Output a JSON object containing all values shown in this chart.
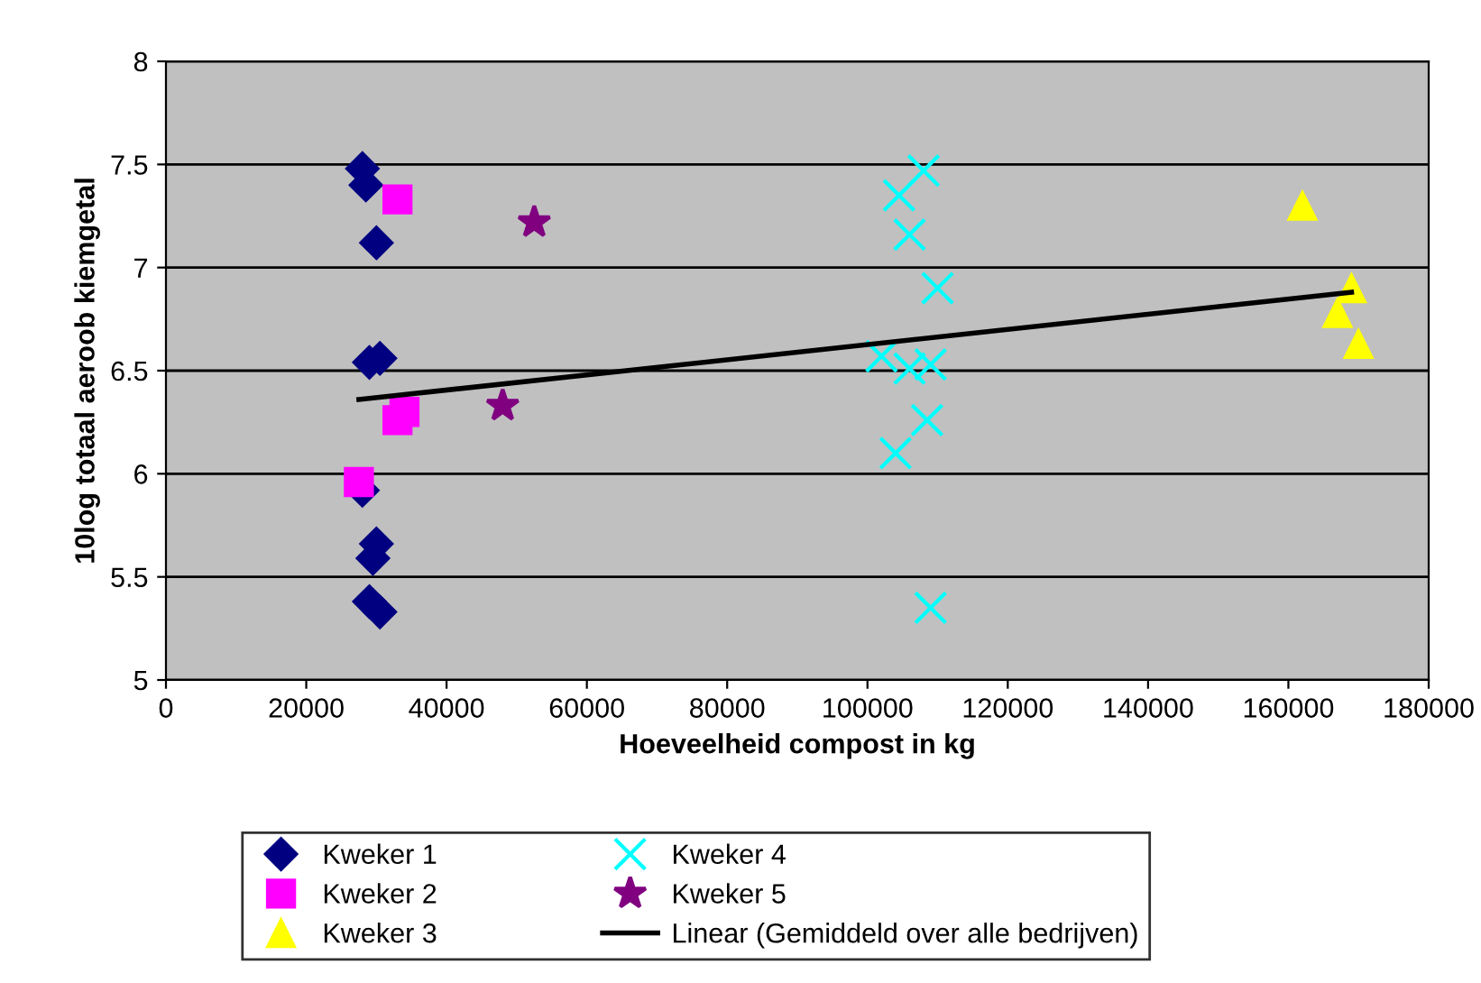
{
  "chart_data": {
    "type": "scatter",
    "xlabel": "Hoeveelheid compost in kg",
    "ylabel": "10log totaal aeroob kiemgetal",
    "xlim": [
      0,
      180000
    ],
    "xticks": [
      0,
      20000,
      40000,
      60000,
      80000,
      100000,
      120000,
      140000,
      160000,
      180000
    ],
    "ylim": [
      5,
      8
    ],
    "yticks": [
      5,
      5.5,
      6,
      6.5,
      7,
      7.5,
      8
    ],
    "grid": "y",
    "legend": "bottom",
    "series": [
      {
        "name": "Kweker 1",
        "color": "#000080",
        "marker": "diamond",
        "x": [
          28000,
          28500,
          30000,
          29000,
          30500,
          28000,
          30000,
          29500,
          29000,
          30500
        ],
        "values": [
          7.48,
          7.4,
          7.12,
          6.54,
          6.56,
          5.92,
          5.66,
          5.59,
          5.38,
          5.33
        ]
      },
      {
        "name": "Kweker 2",
        "color": "#ff00ff",
        "marker": "square",
        "x": [
          33000,
          33000,
          34000,
          27500
        ],
        "values": [
          7.33,
          6.26,
          6.3,
          5.96
        ]
      },
      {
        "name": "Kweker 3",
        "color": "#ffff00",
        "marker": "triangle",
        "x": [
          162000,
          169000,
          167000,
          170000
        ],
        "values": [
          7.3,
          6.9,
          6.78,
          6.63
        ]
      },
      {
        "name": "Kweker 4",
        "color": "#00ffff",
        "marker": "cross",
        "x": [
          108000,
          104500,
          106000,
          110000,
          102000,
          106000,
          109000,
          108500,
          104000,
          109000
        ],
        "values": [
          7.47,
          7.35,
          7.16,
          6.9,
          6.57,
          6.51,
          6.53,
          6.26,
          6.1,
          5.35
        ]
      },
      {
        "name": "Kweker 5",
        "color": "#800080",
        "marker": "star",
        "x": [
          52500,
          48000
        ],
        "values": [
          7.22,
          6.33
        ]
      },
      {
        "name": "Linear (Gemiddeld over alle bedrijven)",
        "type": "line",
        "color": "#000000",
        "marker": "none",
        "line_style": "solid",
        "x": [
          27500,
          169000
        ],
        "values": [
          6.36,
          6.88
        ]
      }
    ]
  }
}
